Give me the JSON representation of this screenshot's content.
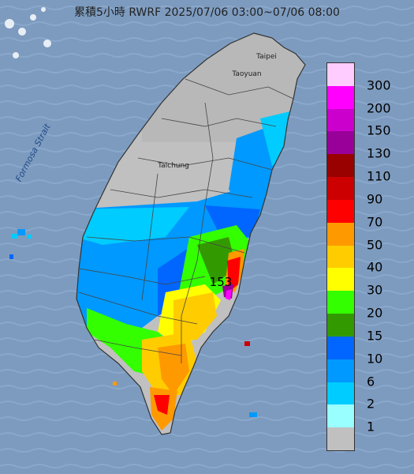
{
  "title": "累積5小時 RWRF 2025/07/06 03:00~07/06 08:00",
  "map_labels": {
    "strait": "Formosa Strait",
    "taipei": "Taipei",
    "taoyuan": "Taoyuan",
    "taichung": "Taichung",
    "max_value": "153"
  },
  "legend": [
    {
      "label": "300",
      "color": "#ffccff"
    },
    {
      "label": "200",
      "color": "#ff00ff"
    },
    {
      "label": "150",
      "color": "#cc00cc"
    },
    {
      "label": "130",
      "color": "#990099"
    },
    {
      "label": "110",
      "color": "#990000"
    },
    {
      "label": "90",
      "color": "#cc0000"
    },
    {
      "label": "70",
      "color": "#ff0000"
    },
    {
      "label": "50",
      "color": "#ff9900"
    },
    {
      "label": "40",
      "color": "#ffcc00"
    },
    {
      "label": "30",
      "color": "#ffff00"
    },
    {
      "label": "20",
      "color": "#33ff00"
    },
    {
      "label": "15",
      "color": "#339900"
    },
    {
      "label": "10",
      "color": "#0066ff"
    },
    {
      "label": "6",
      "color": "#0099ff"
    },
    {
      "label": "2",
      "color": "#00ccff"
    },
    {
      "label": "1",
      "color": "#99ffff"
    },
    {
      "label": "",
      "color": "#c0c0c0"
    }
  ]
}
